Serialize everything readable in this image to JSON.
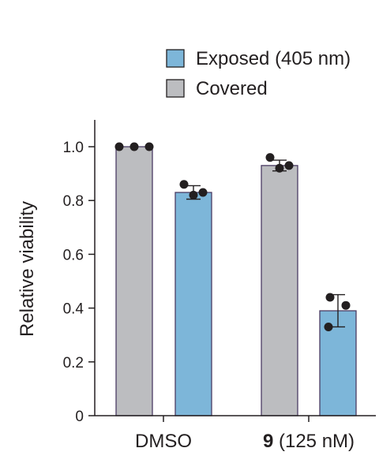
{
  "chart_data": {
    "type": "bar",
    "categories": [
      {
        "bold": "",
        "label": "DMSO"
      },
      {
        "bold": "9",
        "label": " (125 nM)"
      }
    ],
    "series": [
      {
        "name": "Covered",
        "color": "#bcbdc0",
        "values": [
          1.0,
          0.93
        ],
        "error": [
          0.0,
          0.02
        ],
        "points": [
          [
            1.0,
            1.0,
            1.0
          ],
          [
            0.96,
            0.92,
            0.93
          ]
        ]
      },
      {
        "name": "Exposed (405 nm)",
        "color": "#7db6d9",
        "values": [
          0.83,
          0.39
        ],
        "error": [
          0.025,
          0.06
        ],
        "points": [
          [
            0.86,
            0.82,
            0.83
          ],
          [
            0.44,
            0.33,
            0.41
          ]
        ]
      }
    ],
    "legend_order": [
      1,
      0
    ],
    "ylabel": "Relative viability",
    "ylim": [
      0,
      1.0
    ],
    "yticks": [
      0,
      0.2,
      0.4,
      0.6,
      0.8,
      1.0
    ],
    "ytick_labels": [
      "0",
      "0.2",
      "0.4",
      "0.6",
      "0.8",
      "1.0"
    ],
    "bar_stroke_color": "#4b3c63",
    "point_color": "#231f20",
    "legend_position": "top-right"
  }
}
